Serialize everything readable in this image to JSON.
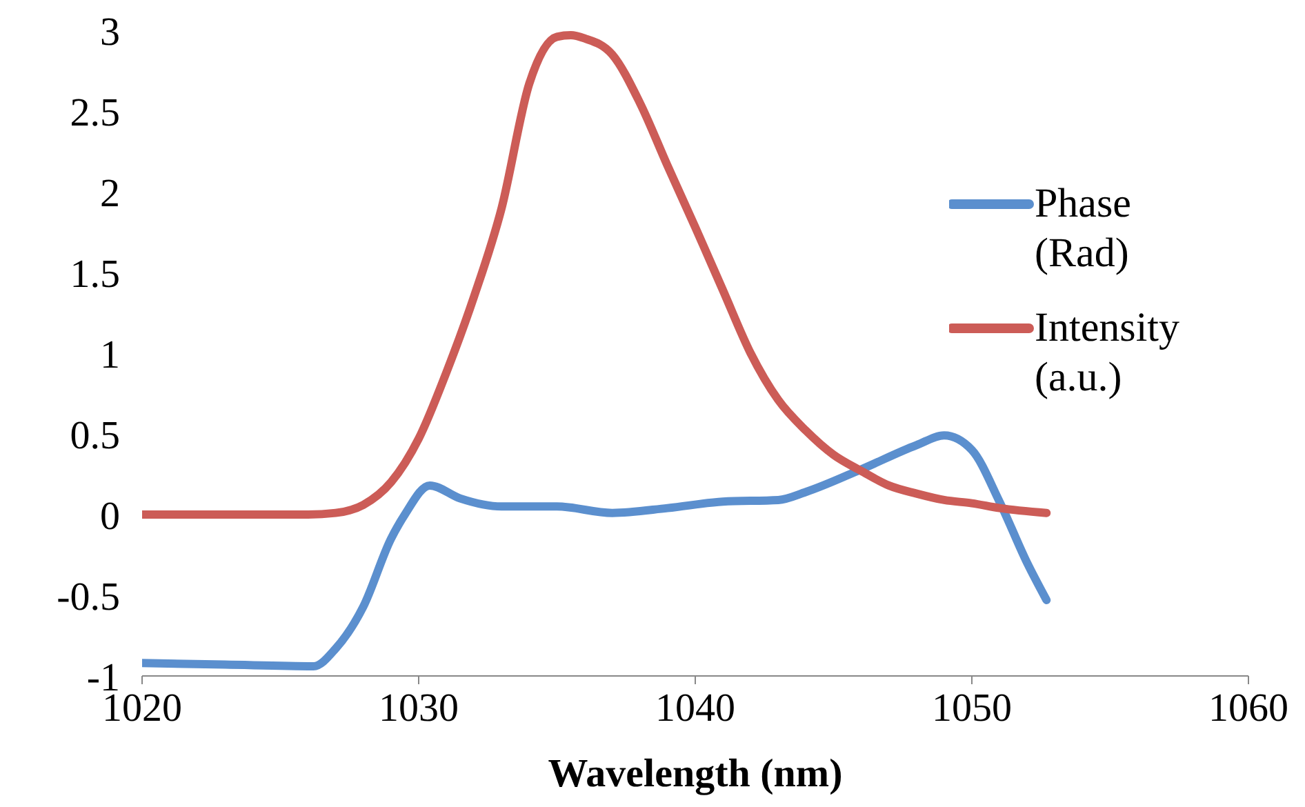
{
  "chart_data": {
    "type": "line",
    "xlabel": "Wavelength (nm)",
    "xlim": [
      1020,
      1060
    ],
    "xticks": [
      1020,
      1030,
      1040,
      1050,
      1060
    ],
    "ylim": [
      -1,
      3
    ],
    "yticks": [
      -1,
      -0.5,
      0,
      0.5,
      1,
      1.5,
      2,
      2.5,
      3
    ],
    "grid": false,
    "legend": "right",
    "marker": "none",
    "line_style": "solid",
    "series": [
      {
        "name": "Phase (Rad)",
        "color": "#5b8fce",
        "x": [
          1020,
          1023,
          1026.2,
          1027,
          1028,
          1029,
          1029.5,
          1030.4,
          1031.5,
          1033,
          1035,
          1037,
          1039,
          1041,
          1043,
          1044,
          1046,
          1048,
          1049,
          1050,
          1051,
          1052,
          1052.7
        ],
        "values": [
          -0.92,
          -0.93,
          -0.94,
          -0.83,
          -0.57,
          -0.15,
          0,
          0.18,
          0.1,
          0.05,
          0.05,
          0.01,
          0.04,
          0.08,
          0.09,
          0.14,
          0.28,
          0.43,
          0.49,
          0.4,
          0.08,
          -0.3,
          -0.53
        ]
      },
      {
        "name": "Intensity (a.u.)",
        "color": "#cc5c57",
        "x": [
          1020,
          1023,
          1026,
          1027,
          1028,
          1029,
          1030,
          1031,
          1032,
          1033,
          1034,
          1035,
          1035.5,
          1036,
          1037,
          1038,
          1039,
          1040,
          1041,
          1042,
          1043,
          1044,
          1045,
          1046,
          1047,
          1048,
          1049,
          1050,
          1051,
          1052.7
        ],
        "values": [
          0,
          0,
          0,
          0.01,
          0.06,
          0.2,
          0.47,
          0.88,
          1.35,
          1.9,
          2.67,
          2.96,
          2.97,
          2.95,
          2.85,
          2.55,
          2.16,
          1.78,
          1.39,
          1,
          0.71,
          0.52,
          0.37,
          0.27,
          0.18,
          0.13,
          0.09,
          0.07,
          0.04,
          0.01
        ]
      }
    ]
  }
}
